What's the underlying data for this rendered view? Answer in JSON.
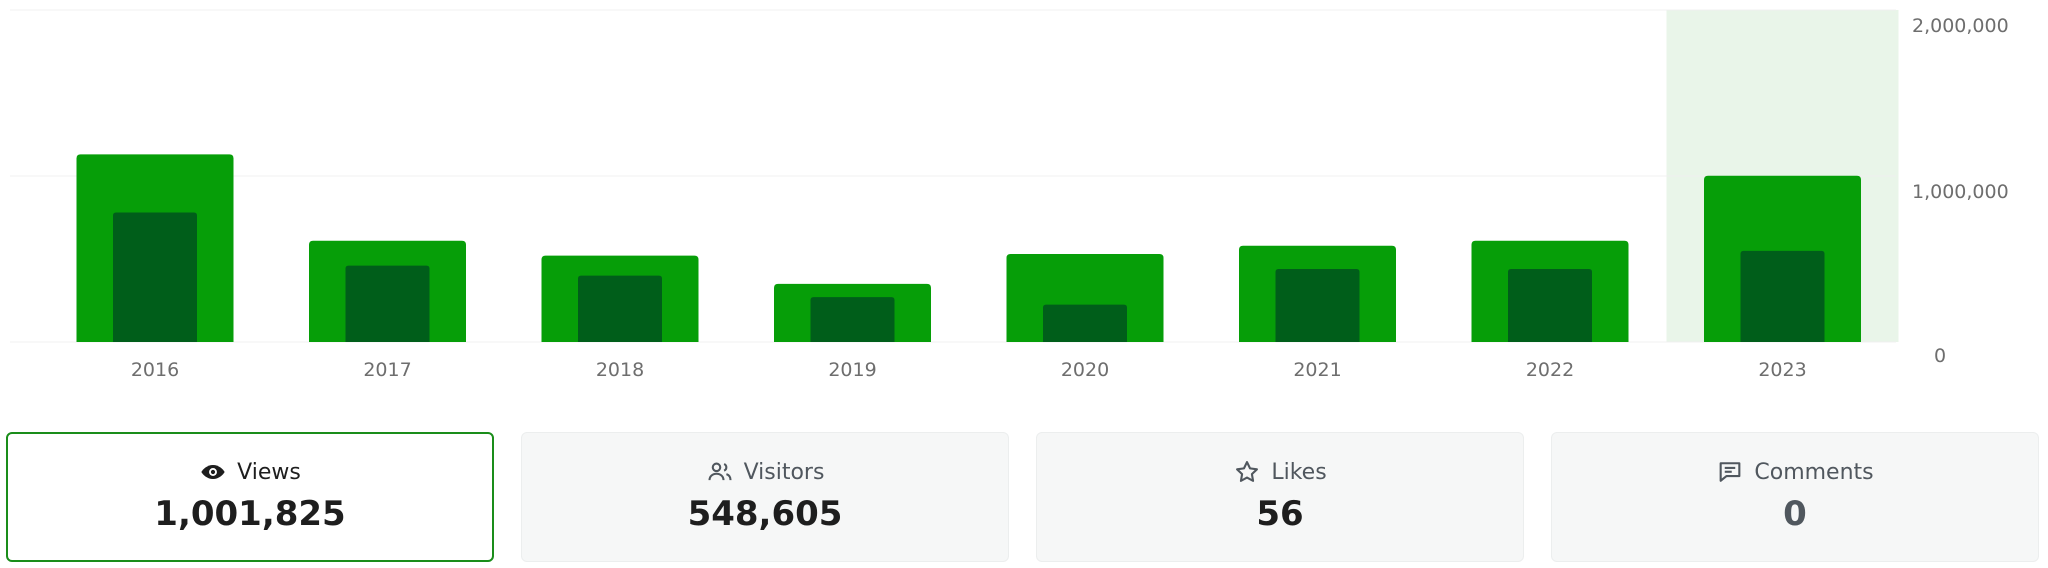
{
  "chart_data": {
    "type": "bar",
    "categories": [
      "2016",
      "2017",
      "2018",
      "2019",
      "2020",
      "2021",
      "2022",
      "2023"
    ],
    "series": [
      {
        "name": "Views",
        "values": [
          1130000,
          610000,
          520000,
          350000,
          530000,
          580000,
          610000,
          1001825
        ]
      },
      {
        "name": "Visitors",
        "values": [
          780000,
          460000,
          400000,
          270000,
          225000,
          440000,
          440000,
          548605
        ]
      }
    ],
    "yticks": [
      "0",
      "1,000,000",
      "2,000,000"
    ],
    "ylim": [
      0,
      2000000
    ],
    "highlighted_category": "2023",
    "grid": true,
    "colors": {
      "views_bar": "#069e08",
      "visitors_bar": "#005e1a",
      "highlight_band": "#e9f5e9",
      "gridline": "#f0f0f0"
    }
  },
  "stats": [
    {
      "key": "views",
      "label": "Views",
      "value": "1,001,825",
      "icon": "eye-icon",
      "selected": true
    },
    {
      "key": "visitors",
      "label": "Visitors",
      "value": "548,605",
      "icon": "people-icon",
      "selected": false
    },
    {
      "key": "likes",
      "label": "Likes",
      "value": "56",
      "icon": "star-icon",
      "selected": false
    },
    {
      "key": "comments",
      "label": "Comments",
      "value": "0",
      "icon": "comment-icon",
      "selected": false
    }
  ]
}
